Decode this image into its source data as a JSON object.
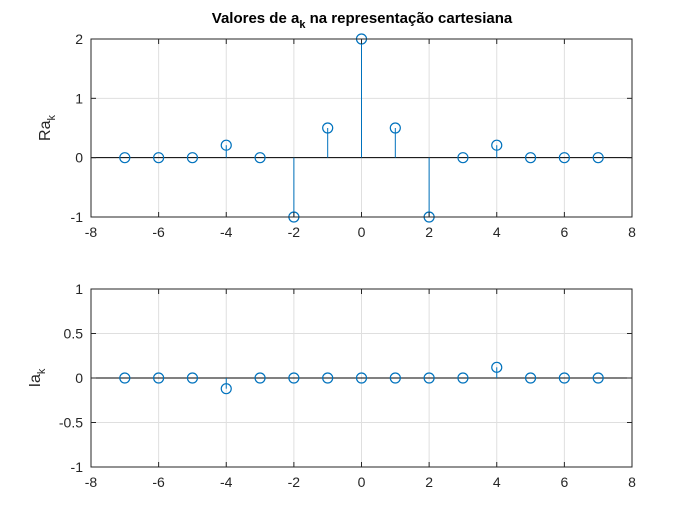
{
  "chart_data": [
    {
      "type": "stem",
      "title_main": "Valores de a",
      "title_sub": "k",
      "title_rest": " na representação cartesiana",
      "ylabel_main": "Ra",
      "ylabel_sub": "k",
      "xlim": [
        -8,
        8
      ],
      "ylim": [
        -1,
        2
      ],
      "xticks": [
        "-8",
        "-6",
        "-4",
        "-2",
        "0",
        "2",
        "4",
        "6",
        "8"
      ],
      "yticks": [
        "-1",
        "0",
        "1",
        "2"
      ],
      "grid": true,
      "color": "#0072bd",
      "x": [
        -7,
        -6,
        -5,
        -4,
        -3,
        -2,
        -1,
        0,
        1,
        2,
        3,
        4,
        5,
        6,
        7
      ],
      "values": [
        0,
        0,
        0,
        0.21,
        0,
        -1,
        0.5,
        2,
        0.5,
        -1,
        0,
        0.21,
        0,
        0,
        0
      ]
    },
    {
      "type": "stem",
      "ylabel_main": "Ia",
      "ylabel_sub": "k",
      "xlim": [
        -8,
        8
      ],
      "ylim": [
        -1,
        1
      ],
      "xticks": [
        "-8",
        "-6",
        "-4",
        "-2",
        "0",
        "2",
        "4",
        "6",
        "8"
      ],
      "yticks": [
        "-1",
        "-0.5",
        "0",
        "0.5",
        "1"
      ],
      "grid": true,
      "color": "#0072bd",
      "x": [
        -7,
        -6,
        -5,
        -4,
        -3,
        -2,
        -1,
        0,
        1,
        2,
        3,
        4,
        5,
        6,
        7
      ],
      "values": [
        0,
        0,
        0,
        -0.12,
        0,
        0,
        0,
        0,
        0,
        0,
        0,
        0.12,
        0,
        0,
        0
      ]
    }
  ]
}
